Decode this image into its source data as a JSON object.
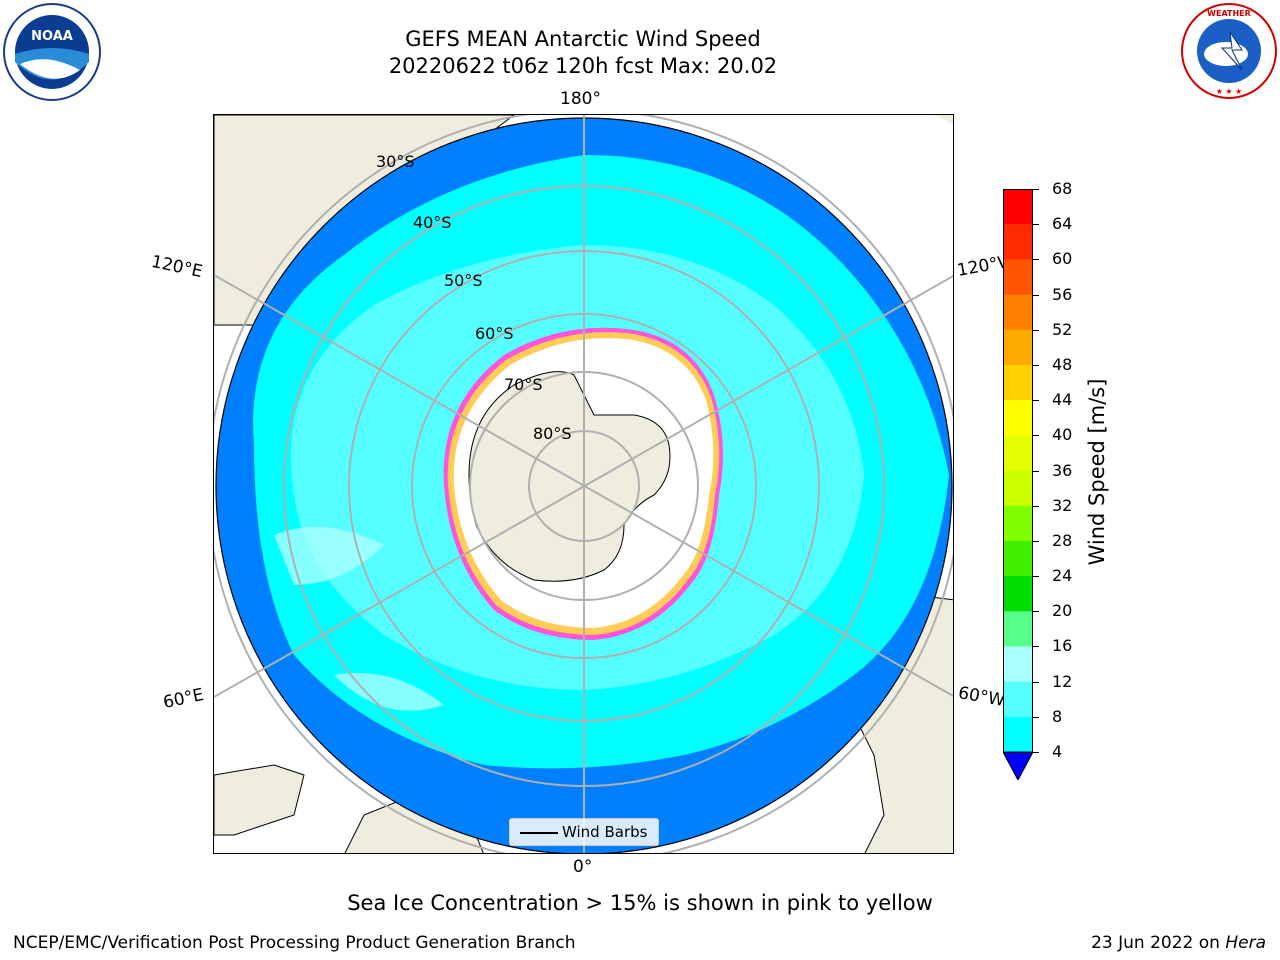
{
  "header": {
    "title_line1": "GEFS MEAN Antarctic Wind Speed",
    "title_line2": "20220622 t06z 120h fcst   Max: 20.02"
  },
  "logos": {
    "left": "NOAA",
    "right": "NATIONAL WEATHER SERVICE"
  },
  "map": {
    "projection": "south polar stereographic",
    "longitude_labels": {
      "top": "180°",
      "bottom": "0°",
      "left_upper": "120°E",
      "left_lower": "60°E",
      "right_upper": "120°W",
      "right_lower": "60°W"
    },
    "latitude_labels": [
      "30°S",
      "40°S",
      "50°S",
      "60°S",
      "70°S",
      "80°S"
    ],
    "legend_label": "Wind Barbs"
  },
  "colorbar": {
    "title": "Wind Speed [m/s]",
    "ticks": [
      "68",
      "64",
      "60",
      "56",
      "52",
      "48",
      "44",
      "40",
      "36",
      "32",
      "28",
      "24",
      "20",
      "16",
      "12",
      "8",
      "4"
    ],
    "colors": [
      "#ff0000",
      "#ff2a00",
      "#ff5500",
      "#ff8000",
      "#ffaa00",
      "#ffd000",
      "#ffff00",
      "#e6ff00",
      "#ccff00",
      "#80ff00",
      "#40ee00",
      "#00dd00",
      "#55ff88",
      "#aaffff",
      "#55ffff",
      "#00ffff",
      "#0080ff"
    ],
    "extend_color": "#0000ff"
  },
  "note": "Sea Ice Concentration > 15% is shown in pink to yellow",
  "footer": {
    "left": "NCEP/EMC/Verification Post Processing Product Generation Branch",
    "right_date": "23 Jun 2022 on ",
    "right_machine": "Hera"
  }
}
